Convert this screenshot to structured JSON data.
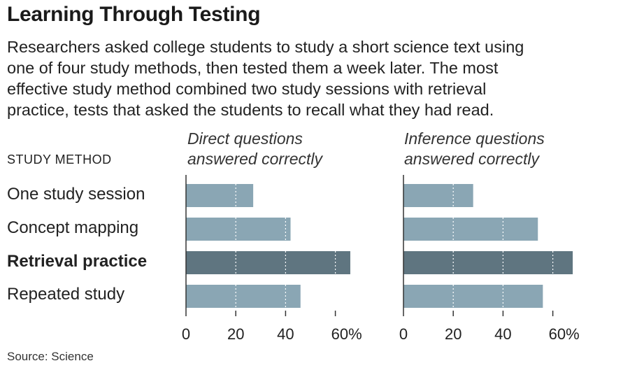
{
  "title": "Learning Through Testing",
  "subtitle_lines": [
    "Researchers asked college students to study a short science text using",
    "one of four study methods, then tested them a week later. The most",
    "effective study method combined two study sessions with retrieval",
    "practice, tests that asked the students to recall what they had read."
  ],
  "category_header": "STUDY METHOD",
  "source": "Source: Science",
  "colors": {
    "bar": "#8aa6b4",
    "highlight_bar": "#5f7580",
    "axis": "#333333"
  },
  "chart_data": [
    {
      "type": "bar",
      "orientation": "horizontal",
      "title_lines": [
        "Direct questions",
        "answered correctly"
      ],
      "categories": [
        "One study session",
        "Concept mapping",
        "Retrieval practice",
        "Repeated study"
      ],
      "highlight": "Retrieval practice",
      "values": [
        27,
        42,
        66,
        46
      ],
      "xlim": [
        0,
        70
      ],
      "ticks": [
        "0",
        "20",
        "40",
        "60%"
      ],
      "tick_values": [
        0,
        20,
        40,
        60
      ]
    },
    {
      "type": "bar",
      "orientation": "horizontal",
      "title_lines": [
        "Inference questions",
        "answered correctly"
      ],
      "categories": [
        "One study session",
        "Concept mapping",
        "Retrieval practice",
        "Repeated study"
      ],
      "highlight": "Retrieval practice",
      "values": [
        28,
        54,
        68,
        56
      ],
      "xlim": [
        0,
        70
      ],
      "ticks": [
        "0",
        "20",
        "40",
        "60%"
      ],
      "tick_values": [
        0,
        20,
        40,
        60
      ]
    }
  ]
}
